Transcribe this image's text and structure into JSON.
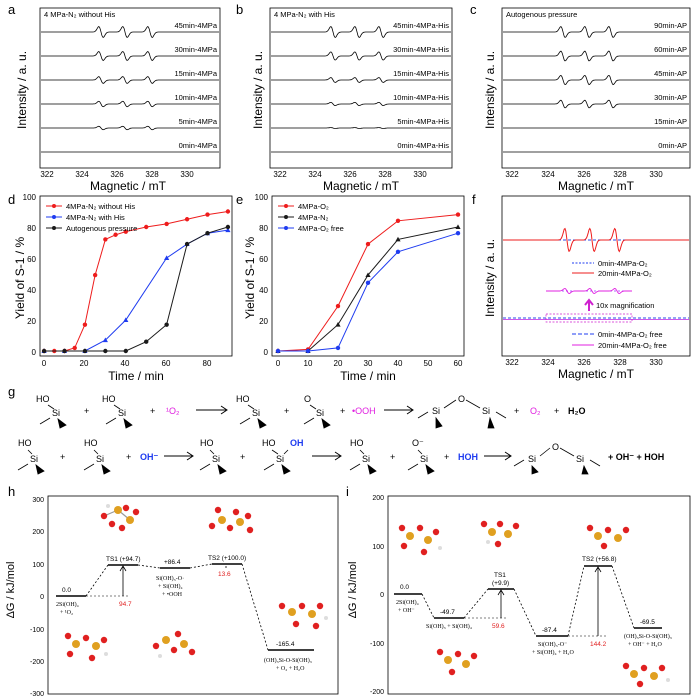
{
  "panels": {
    "a": {
      "letter": "a",
      "title": "4 MPa-N₂ without His",
      "traces": [
        "45min-4MPa",
        "30min-4MPa",
        "15min-4MPa",
        "10min-4MPa",
        "5min-4MPa",
        "0min-4MPa"
      ],
      "amplitudes": [
        1.0,
        0.82,
        0.62,
        0.5,
        0.32,
        0.0
      ]
    },
    "b": {
      "letter": "b",
      "title": "4 MPa-N₂ with His",
      "traces": [
        "45min-4MPa-His",
        "30min-4MPa-His",
        "15min-4MPa-His",
        "10min-4MPa-His",
        "5min-4MPa-His",
        "0min-4MPa-His"
      ],
      "amplitudes": [
        1.0,
        0.75,
        0.45,
        0.3,
        0.08,
        0.0
      ]
    },
    "c": {
      "letter": "c",
      "title": "Autogenous pressure",
      "traces": [
        "90min-AP",
        "60min-AP",
        "45min-AP",
        "30min-AP",
        "15min-AP",
        "0min-AP"
      ],
      "amplitudes": [
        1.0,
        0.9,
        0.85,
        0.7,
        0.0,
        0.0
      ]
    },
    "epr_axis": {
      "ylabel": "Intensity / a. u.",
      "xlabel": "Magnetic / mT",
      "ticks": [
        "322",
        "324",
        "326",
        "328",
        "330"
      ],
      "xlim": [
        321,
        331
      ]
    },
    "d": {
      "letter": "d",
      "ylabel": "Yield of S-1 / %",
      "xlabel": "Time / min",
      "xticks": [
        "0",
        "20",
        "40",
        "60",
        "80"
      ],
      "yticks": [
        "0",
        "20",
        "40",
        "60",
        "80",
        "100"
      ]
    },
    "e": {
      "letter": "e",
      "ylabel": "Yield of S-1 / %",
      "xlabel": "Time / min",
      "xticks": [
        "0",
        "10",
        "20",
        "30",
        "40",
        "50",
        "60"
      ],
      "yticks": [
        "0",
        "20",
        "40",
        "60",
        "80",
        "100"
      ]
    },
    "f": {
      "letter": "f",
      "ylabel": "Intensity / a. u.",
      "xlabel": "Magnetic / mT",
      "ticks": [
        "322",
        "324",
        "326",
        "328",
        "330"
      ],
      "legend_top": [
        "0min-4MPa-O₂",
        "20min-4MPa-O₂"
      ],
      "magnification": "10x magnification",
      "legend_bottom": [
        "0min-4MPa-O₂ free",
        "20min-4MPa-O₂ free"
      ]
    },
    "g": {
      "letter": "g",
      "row1": {
        "ho": "HO",
        "si": "Si",
        "plus": "+",
        "singlet_o2": "¹O₂",
        "o_minus_label": "O",
        "dot_ooh": "•OOH",
        "o_bridge": "O",
        "o2": "O₂",
        "h2o": "H₂O"
      },
      "row2": {
        "ho": "HO",
        "si": "Si",
        "plus": "+",
        "oh_minus": "OH⁻",
        "oh": "OH",
        "o_minus": "O⁻",
        "hoh": "HOH",
        "o_bridge": "O",
        "tail": "+ OH⁻ + HOH"
      }
    },
    "h": {
      "letter": "h",
      "ylabel": "ΔG / kJ/mol",
      "yticks": [
        "300",
        "200",
        "100",
        "0",
        "-100",
        "-200",
        "-300"
      ],
      "levels": [
        "0.0",
        "TS1 (+94.7)",
        "+86.4",
        "TS2 (+100.0)",
        "-165.4"
      ],
      "barriers": [
        "94.7",
        "13.6"
      ],
      "species": [
        "2Si(OH)₄",
        "+ ¹O₂",
        "Si(OH)₃-O·",
        "+ Si(OH)₄",
        "+ •OOH",
        "(OH)₃Si-O-Si(OH)₃",
        "+ O₂ + H₂O"
      ]
    },
    "i": {
      "letter": "i",
      "ylabel": "ΔG / kJ/mol",
      "yticks": [
        "200",
        "100",
        "0",
        "-100",
        "-200"
      ],
      "levels": [
        "0.0",
        "-49.7",
        "TS1",
        "(+9.9)",
        "-87.4",
        "TS2 (+56.8)",
        "-69.5"
      ],
      "barriers": [
        "59.6",
        "144.2"
      ],
      "species": [
        "2Si(OH)₄",
        "+ OH⁻",
        "Si(OH)₃ + Si(OH)₄",
        "Si(OH)₃-O⁻",
        "+ Si(OH)₄ + H₂O",
        "(OH)₃Si-O-Si(OH)₃",
        "+ OH⁻ + H₂O"
      ]
    }
  },
  "chart_data": [
    {
      "type": "line",
      "panel": "d",
      "xlabel": "Time / min",
      "ylabel": "Yield of S-1 / %",
      "xlim": [
        -2,
        92
      ],
      "ylim": [
        0,
        100
      ],
      "series": [
        {
          "name": "4MPa-N₂ without His",
          "color": "#ee1c1c",
          "x": [
            0,
            5,
            10,
            15,
            20,
            25,
            30,
            35,
            40,
            50,
            60,
            70,
            80,
            90
          ],
          "y": [
            0,
            0,
            0,
            2,
            17,
            49,
            72,
            75,
            77,
            80,
            82,
            85,
            88,
            90
          ]
        },
        {
          "name": "4MPa-N₂ with His",
          "color": "#1f3cf0",
          "x": [
            0,
            10,
            20,
            30,
            40,
            60,
            70,
            80,
            90
          ],
          "y": [
            0,
            0,
            0,
            7,
            20,
            60,
            69,
            76,
            78
          ]
        },
        {
          "name": "Autogenous pressure",
          "color": "#1a1a1a",
          "x": [
            0,
            10,
            20,
            30,
            40,
            50,
            60,
            70,
            80,
            90
          ],
          "y": [
            0,
            0,
            0,
            0,
            0,
            6,
            17,
            69,
            76,
            80
          ]
        }
      ]
    },
    {
      "type": "line",
      "panel": "e",
      "xlabel": "Time / min",
      "ylabel": "Yield of S-1 / %",
      "xlim": [
        -2,
        62
      ],
      "ylim": [
        0,
        100
      ],
      "series": [
        {
          "name": "4MPa-O₂",
          "color": "#ee1c1c",
          "x": [
            0,
            10,
            20,
            30,
            40,
            60
          ],
          "y": [
            0,
            1,
            29,
            69,
            84,
            88
          ]
        },
        {
          "name": "4MPa-N₂",
          "color": "#1a1a1a",
          "x": [
            0,
            10,
            20,
            30,
            40,
            60
          ],
          "y": [
            0,
            0,
            17,
            49,
            72,
            80
          ]
        },
        {
          "name": "4MPa-O₂ free",
          "color": "#1f3cf0",
          "x": [
            0,
            10,
            20,
            30,
            40,
            60
          ],
          "y": [
            0,
            0,
            2,
            44,
            64,
            76
          ]
        }
      ]
    }
  ]
}
